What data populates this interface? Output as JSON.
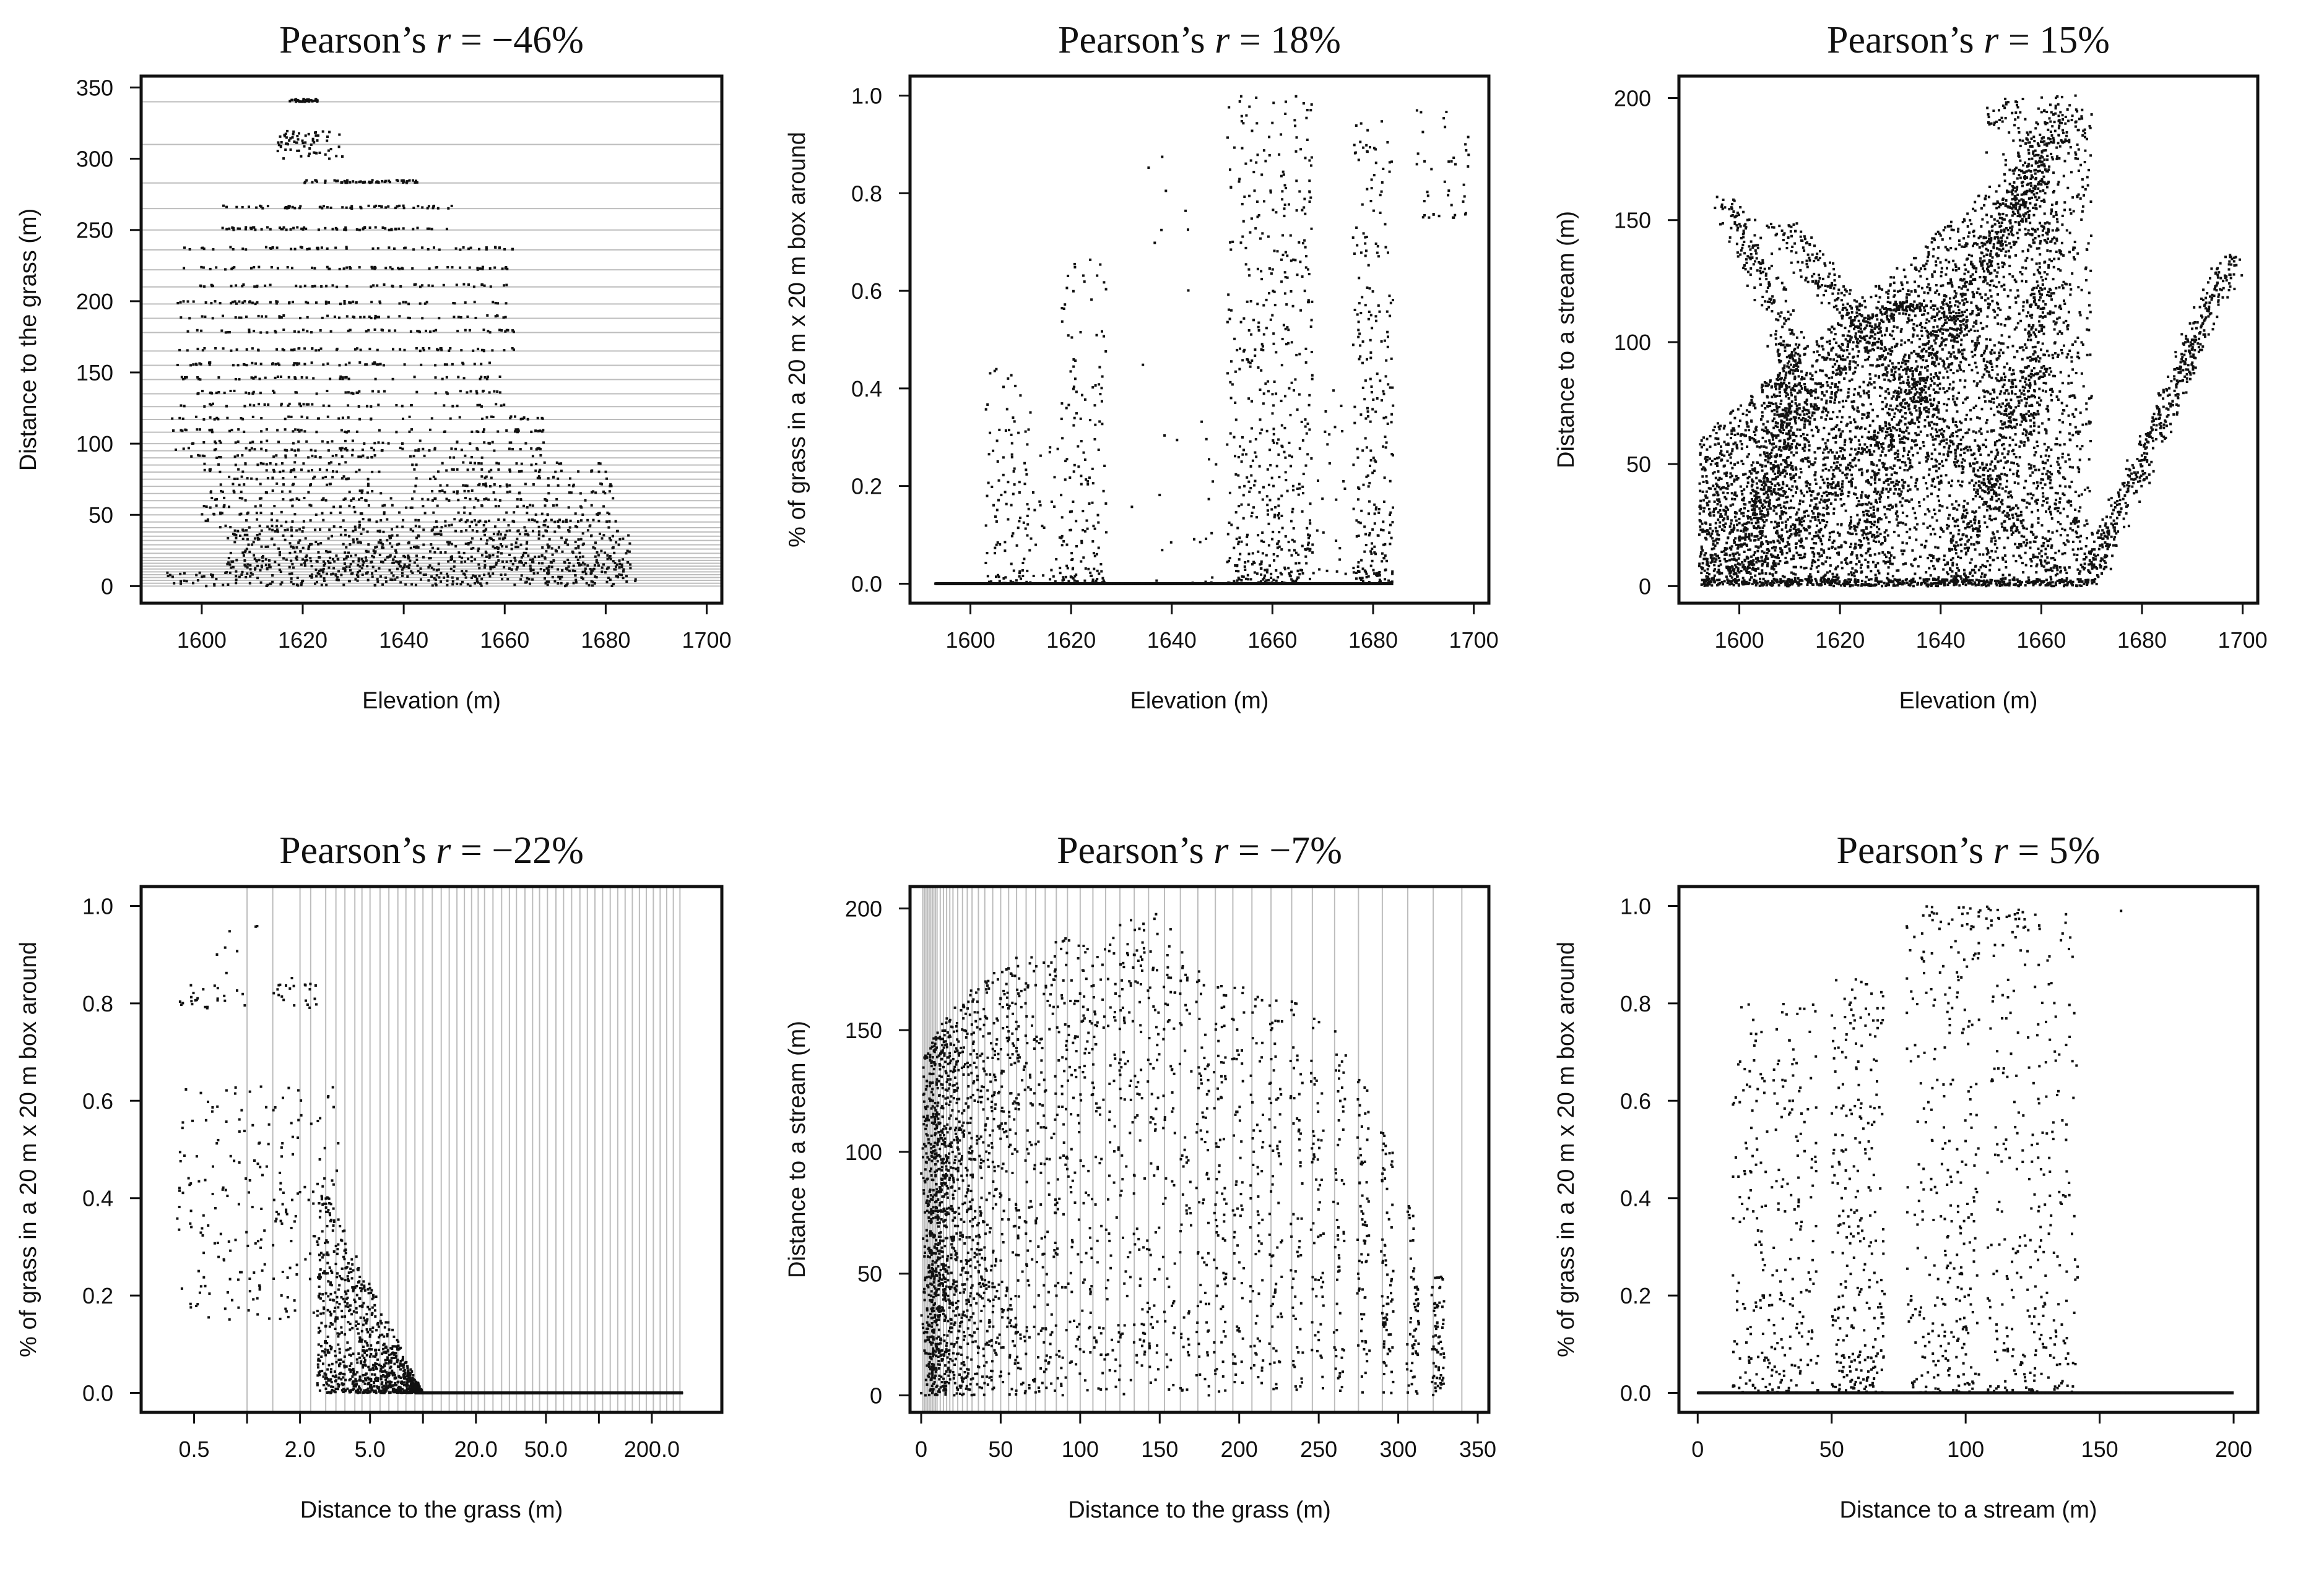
{
  "figure": {
    "background": "#ffffff",
    "point_color": "#111111",
    "gridline_color": "#bdbdbd"
  },
  "chart_data": [
    {
      "type": "scatter",
      "title": "Pearson’s r = −46%",
      "title_prefix": "Pearson’s ",
      "title_var": "r",
      "title_value": " = −46%",
      "xlabel": "Elevation (m)",
      "ylabel": "Distance to the grass (m)",
      "x_scale": "linear",
      "xlim": [
        1588,
        1703
      ],
      "ylim": [
        -12,
        358
      ],
      "xticks": [
        1600,
        1620,
        1640,
        1660,
        1680,
        1700
      ],
      "xtick_labels": [
        "1600",
        "1620",
        "1640",
        "1660",
        "1680",
        "1700"
      ],
      "yticks": [
        0,
        50,
        100,
        150,
        200,
        250,
        300,
        350
      ],
      "ytick_labels": [
        "0",
        "50",
        "100",
        "150",
        "200",
        "250",
        "300",
        "350"
      ],
      "grid": "horizontal lines at discrete distance values",
      "grid_values": [
        0,
        2,
        4,
        6,
        8,
        10,
        12,
        14,
        16,
        18,
        20,
        23,
        26,
        29,
        32,
        35,
        38,
        41,
        45,
        50,
        55,
        60,
        65,
        70,
        75,
        80,
        85,
        90,
        95,
        100,
        108,
        117,
        126,
        135,
        145,
        155,
        165,
        178,
        188,
        198,
        210,
        222,
        236,
        250,
        265,
        283,
        310,
        340
      ],
      "series": [
        {
          "color": "#111111",
          "approximate_extent": [
            {
              "x": [
                1593,
                1686
              ],
              "y": [
                0,
                10
              ]
            },
            {
              "x": [
                1605,
                1685
              ],
              "y": [
                10,
                40
              ]
            },
            {
              "x": [
                1600,
                1682
              ],
              "y": [
                40,
                90
              ]
            },
            {
              "x": [
                1594,
                1660
              ],
              "y": [
                90,
                160
              ]
            },
            {
              "x": [
                1595,
                1662
              ],
              "y": [
                160,
                235
              ]
            },
            {
              "x": [
                1604,
                1650
              ],
              "y": [
                240,
                265
              ]
            },
            {
              "x": [
                1620,
                1643
              ],
              "y": [
                270,
                290
              ]
            },
            {
              "x": [
                1615,
                1628
              ],
              "y": [
                295,
                320
              ]
            }
          ]
        }
      ]
    },
    {
      "type": "scatter",
      "title": "Pearson’s r = 18%",
      "title_prefix": "Pearson’s ",
      "title_var": "r",
      "title_value": " = 18%",
      "xlabel": "Elevation (m)",
      "ylabel": "% of grass in a 20 m x 20 m box around",
      "x_scale": "linear",
      "xlim": [
        1588,
        1703
      ],
      "ylim": [
        -0.04,
        1.04
      ],
      "xticks": [
        1600,
        1620,
        1640,
        1660,
        1680,
        1700
      ],
      "xtick_labels": [
        "1600",
        "1620",
        "1640",
        "1660",
        "1680",
        "1700"
      ],
      "yticks": [
        0.0,
        0.2,
        0.4,
        0.6,
        0.8,
        1.0
      ],
      "ytick_labels": [
        "0.0",
        "0.2",
        "0.4",
        "0.6",
        "0.8",
        "1.0"
      ],
      "grid": "none",
      "series": [
        {
          "color": "#111111",
          "baseline": {
            "y": 0.0,
            "x": [
              1593,
              1684
            ]
          },
          "approximate_extent": [
            {
              "x": [
                1603,
                1612
              ],
              "y": [
                0,
                0.45
              ]
            },
            {
              "x": [
                1618,
                1627
              ],
              "y": [
                0,
                0.68
              ]
            },
            {
              "x": [
                1651,
                1668
              ],
              "y": [
                0,
                1.0
              ]
            },
            {
              "x": [
                1676,
                1684
              ],
              "y": [
                0,
                0.95
              ]
            },
            {
              "x": [
                1688,
                1699
              ],
              "y": [
                0.75,
                1.0
              ]
            }
          ]
        }
      ]
    },
    {
      "type": "scatter",
      "title": "Pearson’s r = 15%",
      "title_prefix": "Pearson’s ",
      "title_var": "r",
      "title_value": " = 15%",
      "xlabel": "Elevation (m)",
      "ylabel": "Distance to a stream (m)",
      "x_scale": "linear",
      "xlim": [
        1588,
        1703
      ],
      "ylim": [
        -7,
        209
      ],
      "xticks": [
        1600,
        1620,
        1640,
        1660,
        1680,
        1700
      ],
      "xtick_labels": [
        "1600",
        "1620",
        "1640",
        "1660",
        "1680",
        "1700"
      ],
      "yticks": [
        0,
        50,
        100,
        150,
        200
      ],
      "ytick_labels": [
        "0",
        "50",
        "100",
        "150",
        "200"
      ],
      "grid": "none",
      "series": [
        {
          "color": "#111111",
          "approximate_extent": [
            {
              "x": [
                1592,
                1670
              ],
              "y": [
                0,
                200
              ]
            },
            {
              "x": [
                1670,
                1699
              ],
              "y": [
                0,
                138
              ]
            }
          ]
        }
      ]
    },
    {
      "type": "scatter",
      "title": "Pearson’s r = −22%",
      "title_prefix": "Pearson’s ",
      "title_var": "r",
      "title_value": " = −22%",
      "xlabel": "Distance to the grass (m)",
      "ylabel": "% of grass in a 20 m x 20 m box around",
      "x_scale": "log",
      "xlim": [
        0.25,
        500
      ],
      "ylim": [
        -0.04,
        1.04
      ],
      "xticks": [
        0.5,
        2.0,
        5.0,
        20.0,
        50.0,
        200.0
      ],
      "xtick_labels": [
        "0.5",
        "2.0",
        "5.0",
        "20.0",
        "50.0",
        "200.0"
      ],
      "minor_xticks": [
        1.0,
        10.0,
        100.0
      ],
      "yticks": [
        0.0,
        0.2,
        0.4,
        0.6,
        0.8,
        1.0
      ],
      "ytick_labels": [
        "0.0",
        "0.2",
        "0.4",
        "0.6",
        "0.8",
        "1.0"
      ],
      "grid": "vertical lines at discrete distance values",
      "grid_values": [
        1.0,
        1.4,
        2.0,
        2.3,
        2.8,
        3.2,
        3.6,
        4.1,
        4.5,
        5.0,
        5.7,
        6.4,
        7.2,
        8.0,
        9.0,
        10.0,
        11.3,
        12.7,
        14.1,
        15.6,
        17.2,
        18.9,
        20.6,
        22.4,
        25.0,
        28.0,
        31.0,
        34.0,
        38.0,
        42.0,
        46.0,
        51.0,
        57.0,
        63.0,
        70.0,
        78.0,
        86.0,
        95.0,
        105.0,
        116.0,
        128.0,
        141.0,
        155.0,
        170.0,
        186.0,
        204.0,
        223.0,
        243.0,
        265.0,
        289.0
      ],
      "series": [
        {
          "color": "#111111",
          "baseline": {
            "y": 0.0,
            "x": [
              9,
              300
            ]
          },
          "approximate_extent": [
            {
              "x": [
                0.4,
                2.5
              ],
              "y": [
                0.8,
                0.97
              ]
            },
            {
              "x": [
                0.4,
                3.5
              ],
              "y": [
                0.15,
                0.63
              ]
            },
            {
              "x": [
                2.5,
                9
              ],
              "y": [
                0.0,
                0.45
              ]
            }
          ]
        }
      ]
    },
    {
      "type": "scatter",
      "title": "Pearson’s r = −7%",
      "title_prefix": "Pearson’s ",
      "title_var": "r",
      "title_value": " = −7%",
      "xlabel": "Distance to the grass (m)",
      "ylabel": "Distance to a stream (m)",
      "x_scale": "linear",
      "xlim": [
        -7,
        357
      ],
      "ylim": [
        -7,
        209
      ],
      "xticks": [
        0,
        50,
        100,
        150,
        200,
        250,
        300,
        350
      ],
      "xtick_labels": [
        "0",
        "50",
        "100",
        "150",
        "200",
        "250",
        "300",
        "350"
      ],
      "yticks": [
        0,
        50,
        100,
        150,
        200
      ],
      "ytick_labels": [
        "0",
        "50",
        "100",
        "150",
        "200"
      ],
      "grid": "vertical lines at discrete distance values",
      "grid_values": [
        1,
        2,
        3,
        4,
        5,
        6,
        7,
        8,
        9,
        10,
        12,
        14,
        16,
        18,
        20,
        23,
        26,
        29,
        32,
        36,
        40,
        45,
        50,
        55,
        60,
        66,
        72,
        78,
        85,
        92,
        100,
        108,
        116,
        125,
        134,
        143,
        153,
        163,
        174,
        185,
        196,
        208,
        220,
        233,
        246,
        260,
        275,
        290,
        306,
        322,
        340
      ],
      "series": [
        {
          "color": "#111111",
          "column_tops": [
            {
              "x": 5,
              "y": 145
            },
            {
              "x": 20,
              "y": 160
            },
            {
              "x": 40,
              "y": 172
            },
            {
              "x": 60,
              "y": 180
            },
            {
              "x": 90,
              "y": 188
            },
            {
              "x": 120,
              "y": 194
            },
            {
              "x": 145,
              "y": 200
            },
            {
              "x": 160,
              "y": 190
            },
            {
              "x": 185,
              "y": 170
            },
            {
              "x": 200,
              "y": 168
            },
            {
              "x": 220,
              "y": 165
            },
            {
              "x": 240,
              "y": 160
            },
            {
              "x": 260,
              "y": 150
            },
            {
              "x": 285,
              "y": 120
            },
            {
              "x": 305,
              "y": 85
            },
            {
              "x": 320,
              "y": 50
            }
          ]
        }
      ]
    },
    {
      "type": "scatter",
      "title": "Pearson’s r = 5%",
      "title_prefix": "Pearson’s ",
      "title_var": "r",
      "title_value": " = 5%",
      "xlabel": "Distance to a stream (m)",
      "ylabel": "% of grass in a 20 m x 20 m box around",
      "x_scale": "linear",
      "xlim": [
        -7,
        209
      ],
      "ylim": [
        -0.04,
        1.04
      ],
      "xticks": [
        0,
        50,
        100,
        150,
        200
      ],
      "xtick_labels": [
        "0",
        "50",
        "100",
        "150",
        "200"
      ],
      "yticks": [
        0.0,
        0.2,
        0.4,
        0.6,
        0.8,
        1.0
      ],
      "ytick_labels": [
        "0.0",
        "0.2",
        "0.4",
        "0.6",
        "0.8",
        "1.0"
      ],
      "grid": "none",
      "series": [
        {
          "color": "#111111",
          "baseline": {
            "y": 0.0,
            "x": [
              0,
              200
            ]
          },
          "approximate_extent": [
            {
              "x": [
                12,
                70
              ],
              "y": [
                0,
                0.85
              ]
            },
            {
              "x": [
                75,
                142
              ],
              "y": [
                0,
                1.0
              ]
            },
            {
              "x": [
                158,
                160
              ],
              "y": [
                0.98,
                1.0
              ]
            }
          ]
        }
      ]
    }
  ]
}
